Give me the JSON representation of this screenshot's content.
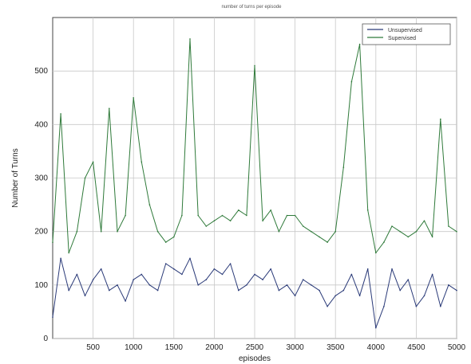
{
  "chart_data": {
    "type": "line",
    "title": "number of turns per episode",
    "xlabel": "episodes",
    "ylabel": "Number of Turns",
    "xlim": [
      0,
      5000
    ],
    "ylim": [
      0,
      600
    ],
    "xticks": [
      500,
      1000,
      1500,
      2000,
      2500,
      3000,
      3500,
      4000,
      4500,
      5000
    ],
    "yticks": [
      0,
      100,
      200,
      300,
      400,
      500
    ],
    "grid": true,
    "legend_position": "top-right",
    "x": [
      0,
      100,
      200,
      300,
      400,
      500,
      600,
      700,
      800,
      900,
      1000,
      1100,
      1200,
      1300,
      1400,
      1500,
      1600,
      1700,
      1800,
      1900,
      2000,
      2100,
      2200,
      2300,
      2400,
      2500,
      2600,
      2700,
      2800,
      2900,
      3000,
      3100,
      3200,
      3300,
      3400,
      3500,
      3600,
      3700,
      3800,
      3900,
      4000,
      4100,
      4200,
      4300,
      4400,
      4500,
      4600,
      4700,
      4800,
      4900,
      5000
    ],
    "series": [
      {
        "name": "Unsupervised",
        "color": "#2a3a78",
        "values": [
          40,
          150,
          90,
          120,
          80,
          110,
          130,
          90,
          100,
          70,
          110,
          120,
          100,
          90,
          140,
          130,
          120,
          150,
          100,
          110,
          130,
          120,
          140,
          90,
          100,
          120,
          110,
          130,
          90,
          100,
          80,
          110,
          100,
          90,
          60,
          80,
          90,
          120,
          80,
          130,
          20,
          60,
          130,
          90,
          110,
          60,
          80,
          120,
          60,
          100,
          90
        ]
      },
      {
        "name": "Supervised",
        "color": "#2f7a3a",
        "values": [
          180,
          420,
          160,
          200,
          300,
          330,
          200,
          430,
          200,
          230,
          450,
          330,
          250,
          200,
          180,
          190,
          230,
          560,
          230,
          210,
          220,
          230,
          220,
          240,
          230,
          510,
          220,
          240,
          200,
          230,
          230,
          210,
          200,
          190,
          180,
          200,
          320,
          480,
          550,
          240,
          160,
          180,
          210,
          200,
          190,
          200,
          220,
          190,
          410,
          210,
          200
        ]
      }
    ]
  }
}
